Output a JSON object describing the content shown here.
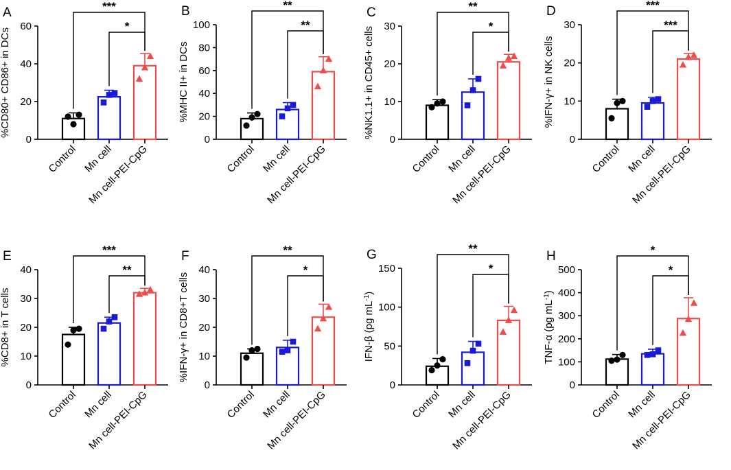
{
  "colors": {
    "Control": "#000000",
    "Mn cell": "#1a1ad6",
    "Mn cell-PEI-CpG": "#f04b4b"
  },
  "chart_data": [
    {
      "type": "bar",
      "panel": "A",
      "ylabel": "%CD80+ CD86+ in DCs",
      "ylim": [
        0,
        60
      ],
      "yticks": [
        0,
        20,
        40,
        60
      ],
      "categories": [
        "Control",
        "Mn cell",
        "Mn cell-PEI-CpG"
      ],
      "values": [
        11,
        22.5,
        39
      ],
      "errors": [
        3,
        3.5,
        6.5
      ],
      "points": [
        [
          12,
          8,
          13
        ],
        [
          19.5,
          23.5,
          24.5
        ],
        [
          32,
          38,
          44
        ]
      ],
      "markers": [
        "circle",
        "square",
        "triangle"
      ],
      "significance": [
        {
          "from": 0,
          "to": 2,
          "label": "***"
        },
        {
          "from": 1,
          "to": 2,
          "label": "*"
        }
      ]
    },
    {
      "type": "bar",
      "panel": "B",
      "ylabel": "%MHC II+ in DCs",
      "ylim": [
        0,
        100
      ],
      "yticks": [
        0,
        20,
        40,
        60,
        80,
        100
      ],
      "categories": [
        "Control",
        "Mn cell",
        "Mn cell-PEI-CpG"
      ],
      "values": [
        18,
        26,
        59
      ],
      "errors": [
        5,
        6,
        13
      ],
      "points": [
        [
          12,
          19,
          22
        ],
        [
          20,
          27,
          30
        ],
        [
          46,
          60,
          70
        ]
      ],
      "markers": [
        "circle",
        "square",
        "triangle"
      ],
      "significance": [
        {
          "from": 0,
          "to": 2,
          "label": "**"
        },
        {
          "from": 1,
          "to": 2,
          "label": "**"
        }
      ]
    },
    {
      "type": "bar",
      "panel": "C",
      "ylabel": "%NK1.1+ in CD45+ cells",
      "ylim": [
        0,
        30
      ],
      "yticks": [
        0,
        10,
        20,
        30
      ],
      "categories": [
        "Control",
        "Mn cell",
        "Mn cell-PEI-CpG"
      ],
      "values": [
        9,
        12.5,
        20.5
      ],
      "errors": [
        1.5,
        3.5,
        2
      ],
      "points": [
        [
          8.5,
          9.5,
          10
        ],
        [
          9,
          13,
          16
        ],
        [
          19.5,
          21.5,
          22
        ]
      ],
      "markers": [
        "circle",
        "square",
        "triangle"
      ],
      "significance": [
        {
          "from": 0,
          "to": 2,
          "label": "**"
        },
        {
          "from": 1,
          "to": 2,
          "label": "*"
        }
      ]
    },
    {
      "type": "bar",
      "panel": "D",
      "ylabel": "%IFN-γ+ in NK cells",
      "ylim": [
        0,
        30
      ],
      "yticks": [
        0,
        10,
        20,
        30
      ],
      "categories": [
        "Control",
        "Mn cell",
        "Mn cell-PEI-CpG"
      ],
      "values": [
        8,
        9.5,
        21
      ],
      "errors": [
        2.5,
        1.5,
        1.5
      ],
      "points": [
        [
          5.5,
          9.5,
          10
        ],
        [
          8.5,
          10,
          10.5
        ],
        [
          19.5,
          21.5,
          22
        ]
      ],
      "markers": [
        "circle",
        "square",
        "triangle"
      ],
      "significance": [
        {
          "from": 0,
          "to": 2,
          "label": "***"
        },
        {
          "from": 1,
          "to": 2,
          "label": "***"
        }
      ]
    },
    {
      "type": "bar",
      "panel": "E",
      "ylabel": "%CD8+ in T cells",
      "ylim": [
        0,
        40
      ],
      "yticks": [
        0,
        10,
        20,
        30,
        40
      ],
      "categories": [
        "Control",
        "Mn cell",
        "Mn cell-PEI-CpG"
      ],
      "values": [
        17.5,
        21.5,
        32
      ],
      "errors": [
        2.5,
        2,
        1.5
      ],
      "points": [
        [
          14,
          19,
          19.5
        ],
        [
          19.5,
          22,
          23.5
        ],
        [
          31.5,
          32,
          33
        ]
      ],
      "markers": [
        "circle",
        "square",
        "triangle"
      ],
      "significance": [
        {
          "from": 0,
          "to": 2,
          "label": "***"
        },
        {
          "from": 1,
          "to": 2,
          "label": "**"
        }
      ]
    },
    {
      "type": "bar",
      "panel": "F",
      "ylabel": "%IFN-γ+ in CD8+T cells",
      "ylim": [
        0,
        40
      ],
      "yticks": [
        0,
        10,
        20,
        30,
        40
      ],
      "categories": [
        "Control",
        "Mn cell",
        "Mn cell-PEI-CpG"
      ],
      "values": [
        11,
        13,
        23.5
      ],
      "errors": [
        1.5,
        2.5,
        4.5
      ],
      "points": [
        [
          9.5,
          12,
          12.5
        ],
        [
          11.5,
          12,
          15
        ],
        [
          19.5,
          23,
          27
        ]
      ],
      "markers": [
        "circle",
        "square",
        "triangle"
      ],
      "significance": [
        {
          "from": 0,
          "to": 2,
          "label": "**"
        },
        {
          "from": 1,
          "to": 2,
          "label": "*"
        }
      ]
    },
    {
      "type": "bar",
      "panel": "G",
      "ylabel": "IFN-β (pg mL-1)",
      "ylabel_main": "IFN-β (pg mL",
      "ylabel_sup": "-1",
      "ylabel_end": ")",
      "ylim": [
        0,
        150
      ],
      "yticks": [
        0,
        50,
        100,
        150
      ],
      "categories": [
        "Control",
        "Mn cell",
        "Mn cell-PEI-CpG"
      ],
      "values": [
        24,
        42,
        83
      ],
      "errors": [
        10,
        14,
        18
      ],
      "points": [
        [
          19,
          25,
          33
        ],
        [
          28,
          44,
          53
        ],
        [
          68,
          83,
          96
        ]
      ],
      "markers": [
        "circle",
        "square",
        "triangle"
      ],
      "significance": [
        {
          "from": 0,
          "to": 2,
          "label": "**"
        },
        {
          "from": 1,
          "to": 2,
          "label": "*"
        }
      ]
    },
    {
      "type": "bar",
      "panel": "H",
      "ylabel": "TNF-α (pg mL-1)",
      "ylabel_main": "TNF-α (pg mL",
      "ylabel_sup": "-1",
      "ylabel_end": ")",
      "ylim": [
        0,
        500
      ],
      "yticks": [
        0,
        100,
        200,
        300,
        400,
        500
      ],
      "categories": [
        "Control",
        "Mn cell",
        "Mn cell-PEI-CpG"
      ],
      "values": [
        112,
        135,
        288
      ],
      "errors": [
        20,
        20,
        90
      ],
      "points": [
        [
          105,
          110,
          130
        ],
        [
          130,
          133,
          150
        ],
        [
          225,
          285,
          355
        ]
      ],
      "markers": [
        "circle",
        "square",
        "triangle"
      ],
      "significance": [
        {
          "from": 0,
          "to": 2,
          "label": "*"
        },
        {
          "from": 1,
          "to": 2,
          "label": "*"
        }
      ]
    }
  ]
}
